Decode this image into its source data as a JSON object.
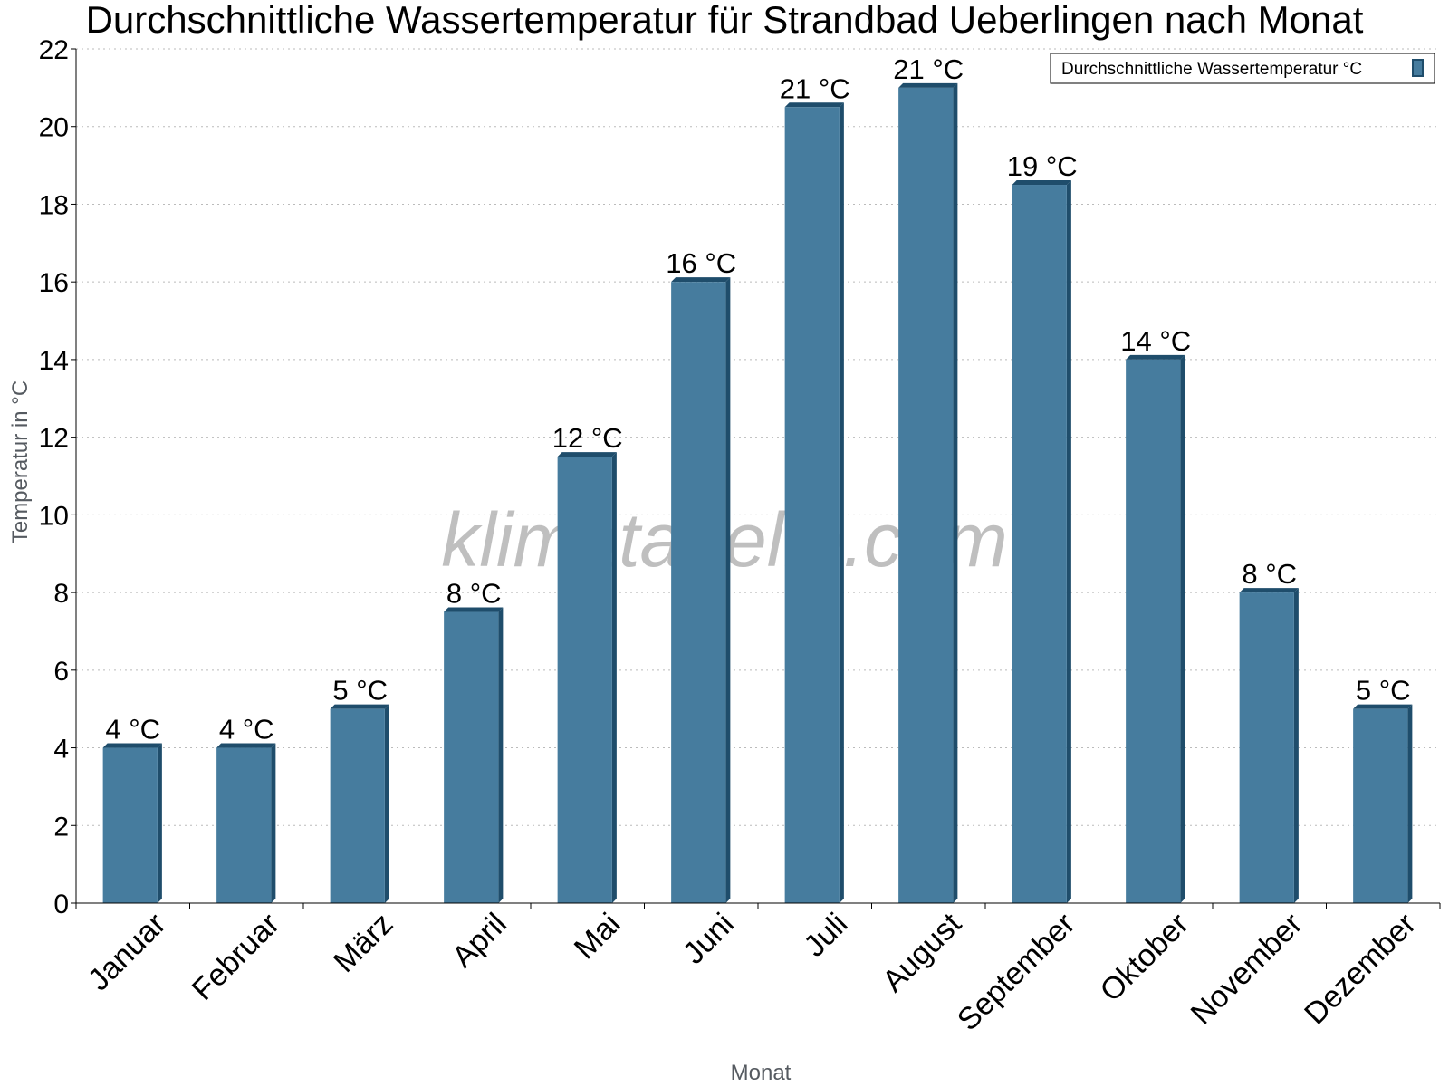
{
  "chart_data": {
    "type": "bar",
    "title": "Durchschnittliche Wassertemperatur für Strandbad Ueberlingen nach Monat",
    "xlabel": "Monat",
    "ylabel": "Temperatur in °C",
    "ylim": [
      0,
      22
    ],
    "yticks": [
      0,
      2,
      4,
      6,
      8,
      10,
      12,
      14,
      16,
      18,
      20,
      22
    ],
    "grid": true,
    "legend_position": "top-right",
    "categories": [
      "Januar",
      "Februar",
      "März",
      "April",
      "Mai",
      "Juni",
      "Juli",
      "August",
      "September",
      "Oktober",
      "November",
      "Dezember"
    ],
    "series": [
      {
        "name": "Durchschnittliche Wassertemperatur °C",
        "values": [
          4,
          4,
          5,
          7.5,
          11.5,
          16,
          20.5,
          21,
          18.5,
          14,
          8,
          5
        ],
        "labels": [
          "4 °C",
          "4 °C",
          "5 °C",
          "8 °C",
          "12 °C",
          "16 °C",
          "21 °C",
          "21 °C",
          "19 °C",
          "14 °C",
          "8 °C",
          "5 °C"
        ],
        "color": "#467c9e",
        "edge_color": "#1f4d6b"
      }
    ],
    "watermark": "klimatabelle.com"
  }
}
